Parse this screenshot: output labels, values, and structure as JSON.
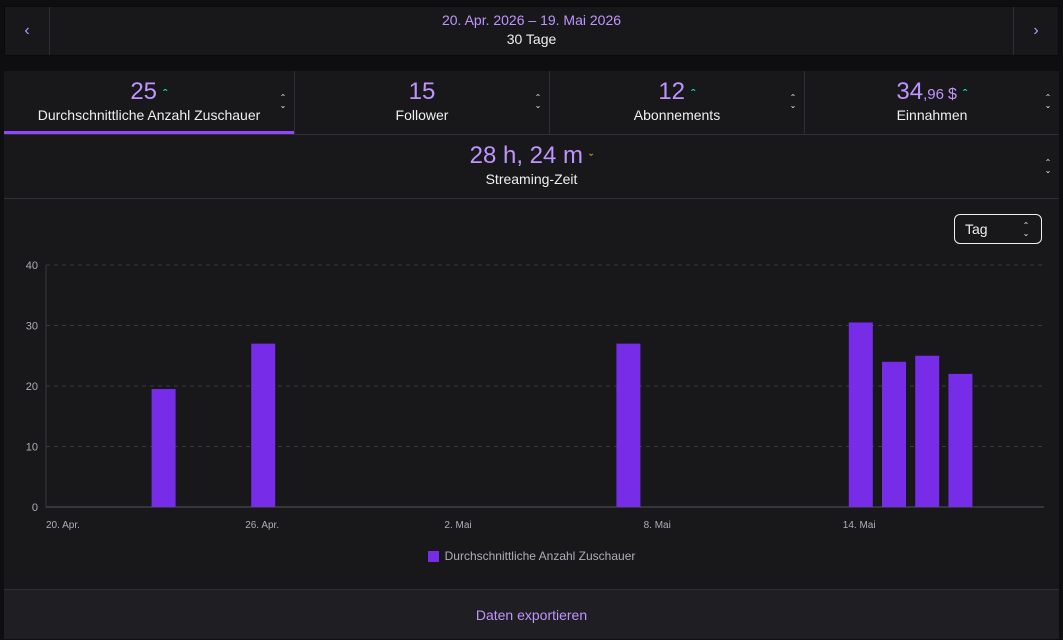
{
  "date_range": {
    "dates": "20. Apr. 2026 – 19. Mai 2026",
    "days": "30 Tage",
    "prev_icon": "chevron-left-icon",
    "next_icon": "chevron-right-icon"
  },
  "stats": {
    "viewers": {
      "value": "25",
      "label": "Durchschnittliche Anzahl Zuschauer",
      "trend": "up"
    },
    "followers": {
      "value": "15",
      "label": "Follower",
      "trend": "none"
    },
    "subs": {
      "value": "12",
      "label": "Abonnements",
      "trend": "up"
    },
    "revenue": {
      "value": "34",
      "cents": ",96",
      "unit": "$",
      "label": "Einnahmen",
      "trend": "up"
    },
    "stream_time": {
      "value": "28 h, 24 m",
      "label": "Streaming-Zeit",
      "trend": "down"
    }
  },
  "granularity": {
    "selected": "Tag"
  },
  "chart_data": {
    "type": "bar",
    "ylim": [
      0,
      40
    ],
    "yticks": [
      0,
      10,
      20,
      30,
      40
    ],
    "grid": true,
    "x_tick_labels": [
      "20. Apr.",
      "26. Apr.",
      "2. Mai",
      "8. Mai",
      "14. Mai"
    ],
    "x_tick_days": [
      0,
      6,
      12,
      18,
      24
    ],
    "series": [
      {
        "name": "Durchschnittliche Anzahl Zuschauer",
        "color": "#772ce8",
        "points": [
          {
            "day": 3,
            "value": 19.5
          },
          {
            "day": 6,
            "value": 27
          },
          {
            "day": 17,
            "value": 27
          },
          {
            "day": 24,
            "value": 30.5
          },
          {
            "day": 25,
            "value": 24
          },
          {
            "day": 26,
            "value": 25
          },
          {
            "day": 27,
            "value": 22
          }
        ]
      }
    ],
    "legend_position": "bottom"
  },
  "export_label": "Daten exportieren",
  "colors": {
    "accent": "#bf94ff",
    "bar": "#772ce8",
    "up": "#00f593",
    "down": "#ffb31a"
  }
}
